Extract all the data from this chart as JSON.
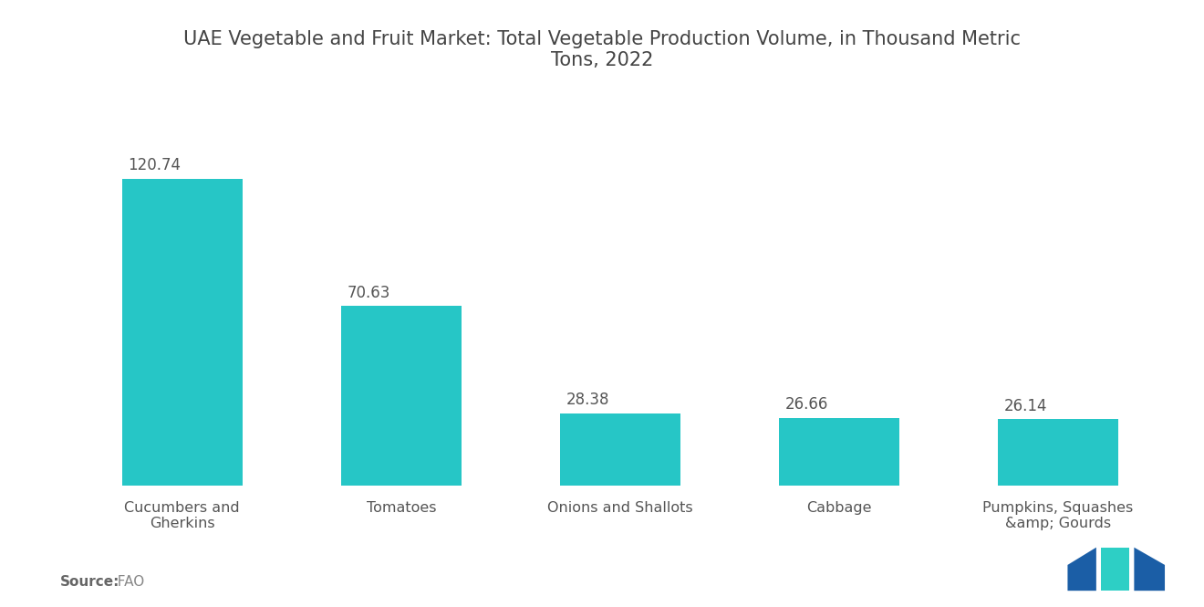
{
  "title": "UAE Vegetable and Fruit Market: Total Vegetable Production Volume, in Thousand Metric\nTons, 2022",
  "categories": [
    "Cucumbers and\nGherkins",
    "Tomatoes",
    "Onions and Shallots",
    "Cabbage",
    "Pumpkins, Squashes\n&amp; Gourds"
  ],
  "values": [
    120.74,
    70.63,
    28.38,
    26.66,
    26.14
  ],
  "bar_color": "#26C6C6",
  "background_color": "#ffffff",
  "title_fontsize": 15,
  "label_fontsize": 11.5,
  "value_fontsize": 12,
  "source_label": "Source:",
  "source_value": "  FAO",
  "source_fontsize": 11,
  "ylim": [
    0,
    148
  ],
  "bar_width": 0.55
}
